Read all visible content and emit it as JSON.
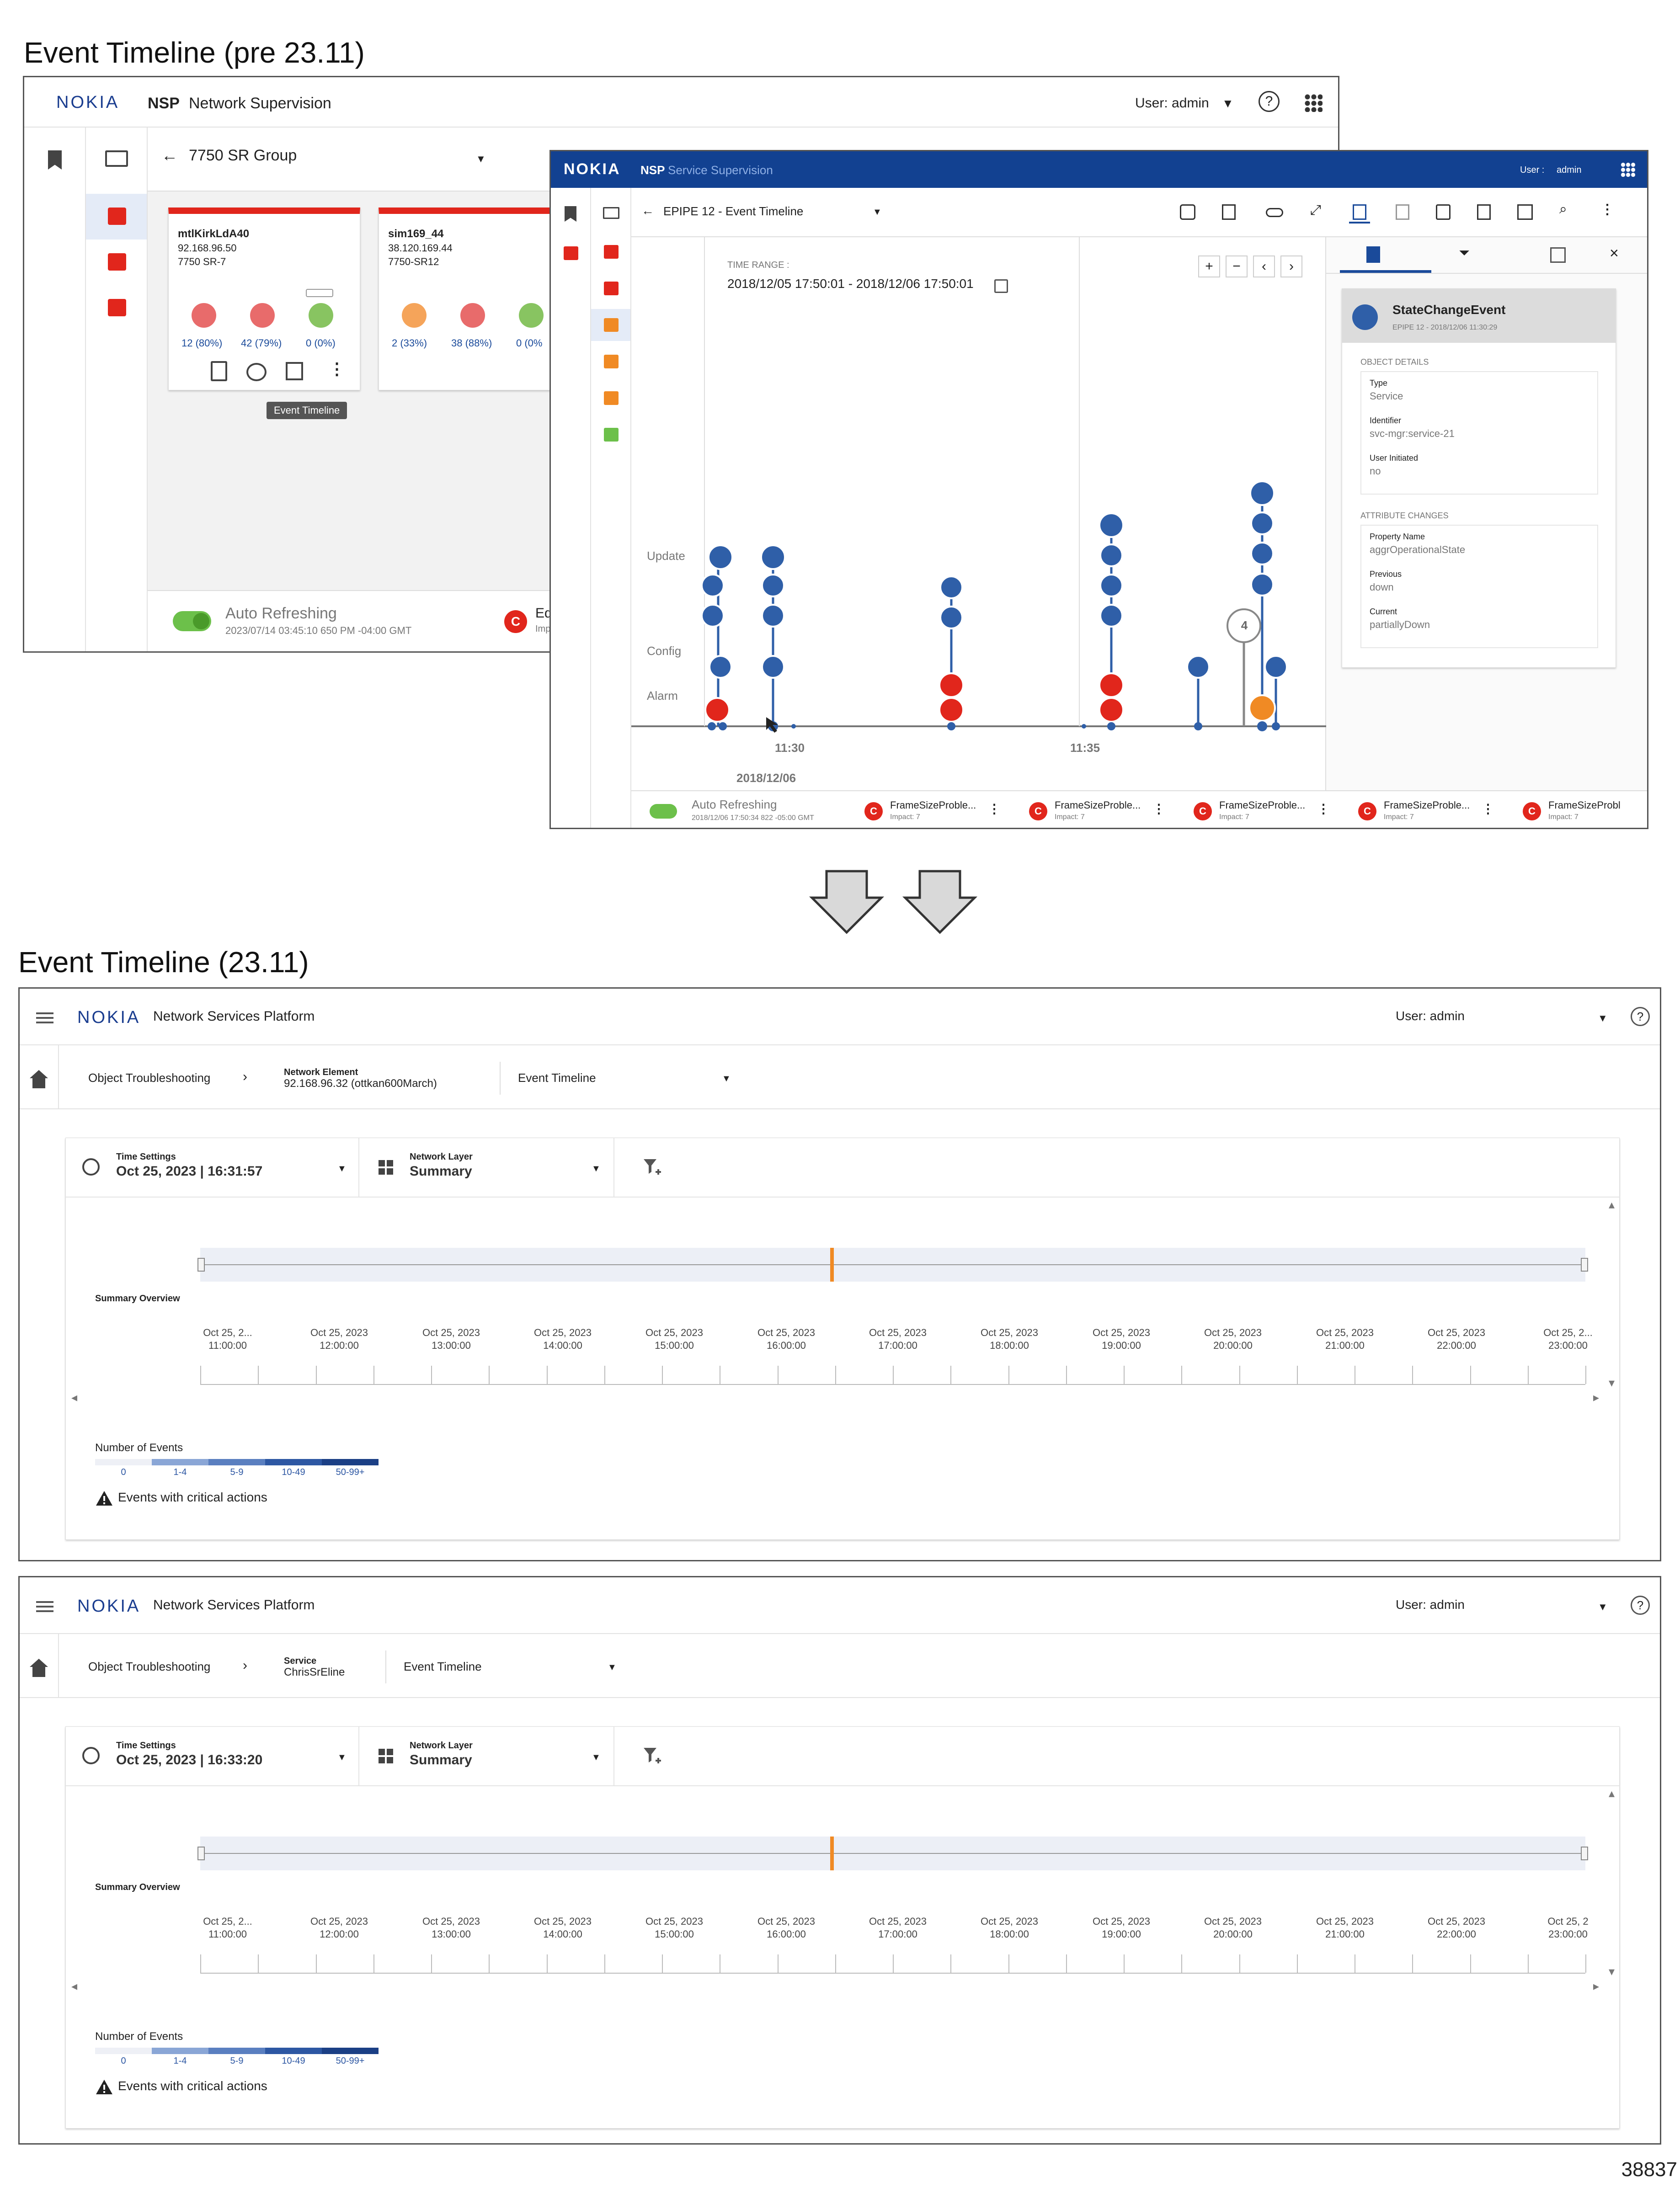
{
  "headings": {
    "old": "Event Timeline (pre 23.11)",
    "new": "Event Timeline (23.11)"
  },
  "figure_id": "38837",
  "old_nsp": {
    "logo": "NOKIA",
    "brand": "NSP",
    "app": "Network Supervision",
    "user": "User: admin",
    "group_title": "7750 SR Group",
    "cards": [
      {
        "name": "mtlKirkLdA40",
        "ip": "92.168.96.50",
        "type": "7750 SR-7",
        "stats": [
          "12 (80%)",
          "42 (79%)",
          "0 (0%)"
        ]
      },
      {
        "name": "sim169_44",
        "ip": "38.120.169.44",
        "type": "7750-SR12",
        "stats": [
          "2 (33%)",
          "38 (88%)",
          "0 (0%"
        ]
      }
    ],
    "tooltip": "Event Timeline",
    "auto_refresh": "Auto Refreshing",
    "auto_time": "2023/07/14 03:45:10 650 PM -04:00 GMT",
    "equip_label": "Equip",
    "equip_sub": "Impac"
  },
  "old_ss": {
    "logo": "NOKIA",
    "brand": "NSP",
    "app": "Service Supervision",
    "user_label": "User :",
    "user": "admin",
    "title": "EPIPE 12 - Event Timeline",
    "time_range_label": "TIME RANGE :",
    "time_range": "2018/12/05 17:50:01 - 2018/12/06 17:50:01",
    "rows": [
      "Update",
      "Config",
      "Alarm"
    ],
    "x_ticks": [
      "11:30",
      "11:35"
    ],
    "date": "2018/12/06",
    "cluster": "4",
    "event": {
      "title": "StateChangeEvent",
      "sub": "EPIPE 12 - 2018/12/06 11:30:29",
      "details_label": "OBJECT DETAILS",
      "details": [
        {
          "k": "Type",
          "v": "Service"
        },
        {
          "k": "Identifier",
          "v": "svc-mgr:service-21"
        },
        {
          "k": "User Initiated",
          "v": "no"
        }
      ],
      "attr_label": "ATTRIBUTE CHANGES",
      "attrs": [
        {
          "k": "Property Name",
          "v": "aggrOperationalState"
        },
        {
          "k": "Previous",
          "v": "down"
        },
        {
          "k": "Current",
          "v": "partiallyDown"
        }
      ]
    },
    "auto_refresh": "Auto Refreshing",
    "auto_time": "2018/12/06 17:50:34 822 -05:00 GMT",
    "alarms": [
      {
        "label": "FrameSizeProble...",
        "impact": "Impact: 7"
      },
      {
        "label": "FrameSizeProble...",
        "impact": "Impact: 7"
      },
      {
        "label": "FrameSizeProble...",
        "impact": "Impact: 7"
      },
      {
        "label": "FrameSizeProble...",
        "impact": "Impact: 7"
      },
      {
        "label": "FrameSizeProbl",
        "impact": "Impact: 7"
      }
    ]
  },
  "new_panels": [
    {
      "logo": "NOKIA",
      "app": "Network Services Platform",
      "user": "User: admin",
      "crumb_root": "Object Troubleshooting",
      "ctx_label": "Network Element",
      "ctx_value": "92.168.96.32 (ottkan600March)",
      "view": "Event Timeline",
      "time_label": "Time Settings",
      "time_value": "Oct 25, 2023 | 16:31:57",
      "layer_label": "Network Layer",
      "layer_value": "Summary",
      "overview": "Summary Overview",
      "ticks": [
        [
          "Oct 25, 2...",
          "11:00:00"
        ],
        [
          "Oct 25, 2023",
          "12:00:00"
        ],
        [
          "Oct 25, 2023",
          "13:00:00"
        ],
        [
          "Oct 25, 2023",
          "14:00:00"
        ],
        [
          "Oct 25, 2023",
          "15:00:00"
        ],
        [
          "Oct 25, 2023",
          "16:00:00"
        ],
        [
          "Oct 25, 2023",
          "17:00:00"
        ],
        [
          "Oct 25, 2023",
          "18:00:00"
        ],
        [
          "Oct 25, 2023",
          "19:00:00"
        ],
        [
          "Oct 25, 2023",
          "20:00:00"
        ],
        [
          "Oct 25, 2023",
          "21:00:00"
        ],
        [
          "Oct 25, 2023",
          "22:00:00"
        ],
        [
          "Oct 25, 2...",
          "23:00:00"
        ]
      ],
      "legend_title": "Number of Events",
      "legend": [
        "0",
        "1-4",
        "5-9",
        "10-49",
        "50-99+"
      ],
      "critical": "Events with critical actions"
    },
    {
      "logo": "NOKIA",
      "app": "Network Services Platform",
      "user": "User: admin",
      "crumb_root": "Object Troubleshooting",
      "ctx_label": "Service",
      "ctx_value": "ChrisSrEline",
      "view": "Event Timeline",
      "time_label": "Time Settings",
      "time_value": "Oct 25, 2023 | 16:33:20",
      "layer_label": "Network Layer",
      "layer_value": "Summary",
      "overview": "Summary Overview",
      "ticks": [
        [
          "Oct 25, 2...",
          "11:00:00"
        ],
        [
          "Oct 25, 2023",
          "12:00:00"
        ],
        [
          "Oct 25, 2023",
          "13:00:00"
        ],
        [
          "Oct 25, 2023",
          "14:00:00"
        ],
        [
          "Oct 25, 2023",
          "15:00:00"
        ],
        [
          "Oct 25, 2023",
          "16:00:00"
        ],
        [
          "Oct 25, 2023",
          "17:00:00"
        ],
        [
          "Oct 25, 2023",
          "18:00:00"
        ],
        [
          "Oct 25, 2023",
          "19:00:00"
        ],
        [
          "Oct 25, 2023",
          "20:00:00"
        ],
        [
          "Oct 25, 2023",
          "21:00:00"
        ],
        [
          "Oct 25, 2023",
          "22:00:00"
        ],
        [
          "Oct 25, 2",
          "23:00:00"
        ]
      ],
      "legend_title": "Number of Events",
      "legend": [
        "0",
        "1-4",
        "5-9",
        "10-49",
        "50-99+"
      ],
      "critical": "Events with critical actions"
    }
  ],
  "colors": {
    "nokia_blue": "#124191",
    "alarm_red": "#e1261c",
    "event_blue": "#2f5fa8",
    "marker_orange": "#f08a24",
    "legend": [
      "#eef0f6",
      "#8aa6d6",
      "#5a7fc0",
      "#2d57a3",
      "#1b3f85"
    ]
  }
}
